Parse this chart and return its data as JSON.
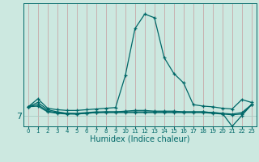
{
  "xlabel": "Humidex (Indice chaleur)",
  "bg_color": "#cce8e0",
  "line_color": "#006868",
  "grid_color_v": "#c8a8a8",
  "grid_color_h": "#aaccc4",
  "ytick_label": "7",
  "ytick_pos": 7.0,
  "ymin": 5.5,
  "ymax": 22.5,
  "xmin": 0,
  "xmax": 23,
  "curves": [
    {
      "x": [
        0,
        1,
        2,
        3,
        4,
        5,
        6,
        7,
        8,
        9,
        10,
        11,
        12,
        13,
        14,
        15,
        16,
        17,
        18,
        19,
        20,
        21,
        22,
        23
      ],
      "y": [
        8.2,
        9.3,
        8.0,
        7.8,
        7.7,
        7.7,
        7.8,
        7.9,
        8.0,
        8.1,
        12.5,
        19.0,
        21.0,
        20.5,
        15.0,
        12.8,
        11.5,
        8.5,
        8.3,
        8.2,
        8.0,
        7.9,
        9.2,
        8.8
      ]
    },
    {
      "x": [
        0,
        1,
        2,
        3,
        4,
        5,
        6,
        7,
        8,
        9,
        10,
        11,
        12,
        13,
        14,
        15,
        16,
        17,
        18,
        19,
        20,
        21,
        22,
        23
      ],
      "y": [
        8.2,
        8.5,
        7.6,
        7.4,
        7.3,
        7.3,
        7.4,
        7.5,
        7.5,
        7.5,
        7.5,
        7.5,
        7.5,
        7.5,
        7.5,
        7.5,
        7.5,
        7.5,
        7.5,
        7.4,
        7.3,
        7.2,
        7.4,
        8.5
      ]
    },
    {
      "x": [
        0,
        1,
        2,
        3,
        4,
        5,
        6,
        7,
        8,
        9,
        10,
        11,
        12,
        13,
        14,
        15,
        16,
        17,
        18,
        19,
        20,
        21,
        22,
        23
      ],
      "y": [
        8.2,
        8.3,
        7.5,
        7.3,
        7.2,
        7.2,
        7.3,
        7.4,
        7.4,
        7.4,
        7.4,
        7.4,
        7.4,
        7.4,
        7.4,
        7.4,
        7.4,
        7.4,
        7.4,
        7.3,
        7.2,
        7.1,
        7.2,
        8.5
      ]
    },
    {
      "x": [
        0,
        1,
        2,
        3,
        4,
        5,
        6,
        7,
        8,
        9,
        10,
        11,
        12,
        13,
        14,
        15,
        16,
        17,
        18,
        19,
        20,
        21,
        22,
        23
      ],
      "y": [
        8.2,
        8.8,
        7.8,
        7.5,
        7.3,
        7.2,
        7.3,
        7.4,
        7.5,
        7.5,
        7.6,
        7.7,
        7.7,
        7.6,
        7.6,
        7.6,
        7.5,
        7.5,
        7.5,
        7.4,
        7.3,
        5.5,
        7.0,
        8.5
      ]
    }
  ]
}
